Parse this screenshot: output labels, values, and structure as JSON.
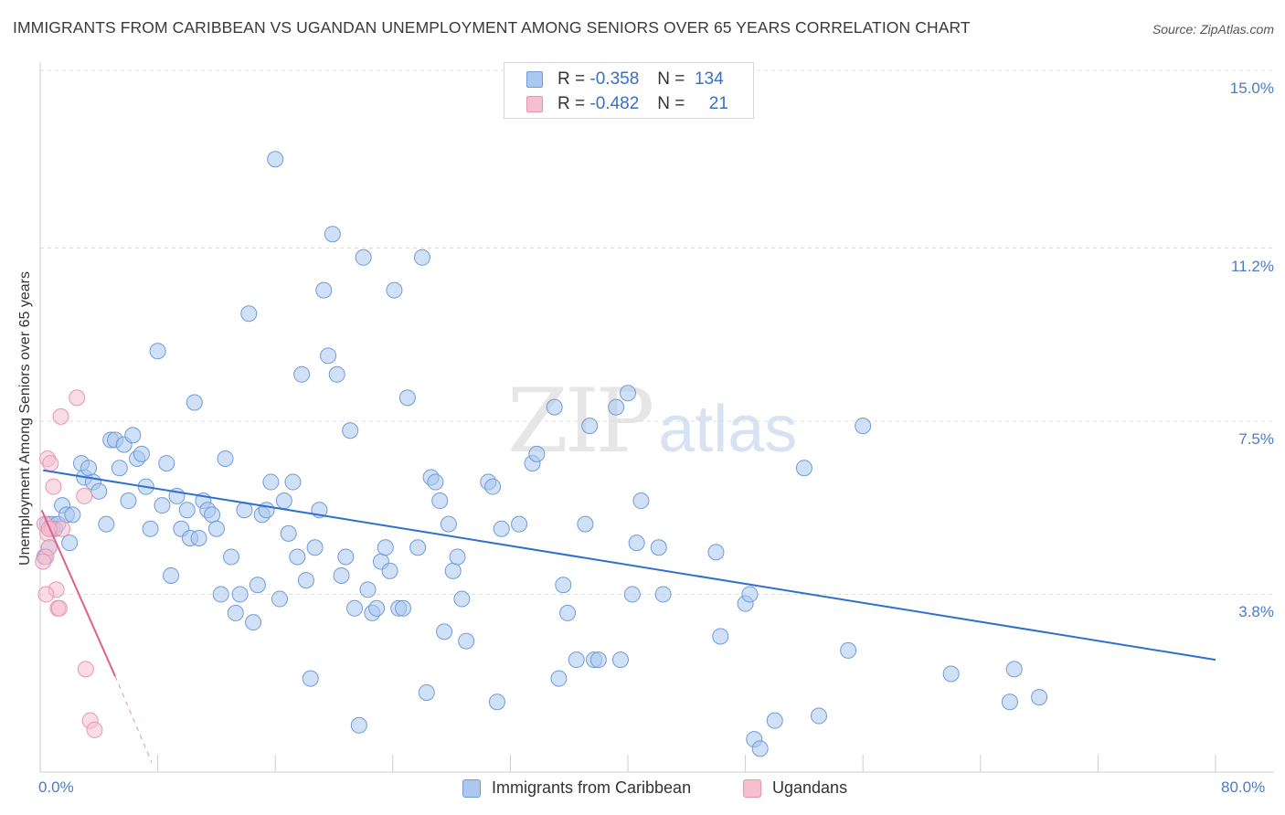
{
  "header": {
    "title": "IMMIGRANTS FROM CARIBBEAN VS UGANDAN UNEMPLOYMENT AMONG SENIORS OVER 65 YEARS CORRELATION CHART",
    "source": "Source: ZipAtlas.com"
  },
  "watermark": {
    "zip": "ZIP",
    "atlas": "atlas"
  },
  "legend_top": {
    "rows": [
      {
        "r_label": "R =",
        "r_value": "-0.358",
        "n_label": "N =",
        "n_value": "134"
      },
      {
        "r_label": "R =",
        "r_value": "-0.482",
        "n_label": "N =",
        "n_value": "21"
      }
    ]
  },
  "legend_bottom": {
    "items": [
      {
        "label": "Immigrants from Caribbean"
      },
      {
        "label": "Ugandans"
      }
    ]
  },
  "colors": {
    "blue_fill": "#aac8f0",
    "blue_stroke": "#6f9bd8",
    "blue_line": "#2f6fd0",
    "pink_fill": "#f6bfd0",
    "pink_stroke": "#e895b0",
    "pink_line": "#e0608e",
    "grid": "#dddddd",
    "axis_text": "#4a7cc7"
  },
  "chart_data": {
    "type": "scatter",
    "title": "IMMIGRANTS FROM CARIBBEAN VS UGANDAN UNEMPLOYMENT AMONG SENIORS OVER 65 YEARS CORRELATION CHART",
    "xlabel": "",
    "ylabel": "Unemployment Among Seniors over 65 years",
    "xlim": [
      0,
      80
    ],
    "ylim": [
      0,
      15.5
    ],
    "x_tick_labels": [
      "0.0%",
      "80.0%"
    ],
    "y_ticks": [
      3.8,
      7.5,
      11.2,
      15.0
    ],
    "y_tick_labels": [
      "3.8%",
      "7.5%",
      "11.2%",
      "15.0%"
    ],
    "grid": true,
    "legend_position": "top-center",
    "series": [
      {
        "name": "Immigrants from Caribbean",
        "r": -0.358,
        "n": 134,
        "trend": {
          "x": [
            0.2,
            80.0
          ],
          "y": [
            6.45,
            2.4
          ]
        },
        "points": [
          [
            0.5,
            5.3
          ],
          [
            0.8,
            5.3
          ],
          [
            1.0,
            5.2
          ],
          [
            1.2,
            5.3
          ],
          [
            1.5,
            5.7
          ],
          [
            1.8,
            5.5
          ],
          [
            2.0,
            4.9
          ],
          [
            2.2,
            5.5
          ],
          [
            2.8,
            6.6
          ],
          [
            3.0,
            6.3
          ],
          [
            3.3,
            6.5
          ],
          [
            3.6,
            6.2
          ],
          [
            4.0,
            6.0
          ],
          [
            4.5,
            5.3
          ],
          [
            4.8,
            7.1
          ],
          [
            5.1,
            7.1
          ],
          [
            5.4,
            6.5
          ],
          [
            5.7,
            7.0
          ],
          [
            6.0,
            5.8
          ],
          [
            6.3,
            7.2
          ],
          [
            6.6,
            6.7
          ],
          [
            6.9,
            6.8
          ],
          [
            7.2,
            6.1
          ],
          [
            7.5,
            5.2
          ],
          [
            8.0,
            9.0
          ],
          [
            8.3,
            5.7
          ],
          [
            8.6,
            6.6
          ],
          [
            8.9,
            4.2
          ],
          [
            9.3,
            5.9
          ],
          [
            9.6,
            5.2
          ],
          [
            10.0,
            5.6
          ],
          [
            10.2,
            5.0
          ],
          [
            10.5,
            7.9
          ],
          [
            10.8,
            5.0
          ],
          [
            11.1,
            5.8
          ],
          [
            11.4,
            5.6
          ],
          [
            11.7,
            5.5
          ],
          [
            12.0,
            5.2
          ],
          [
            12.3,
            3.8
          ],
          [
            12.6,
            6.7
          ],
          [
            13.0,
            4.6
          ],
          [
            13.3,
            3.4
          ],
          [
            13.6,
            3.8
          ],
          [
            13.9,
            5.6
          ],
          [
            14.2,
            9.8
          ],
          [
            14.5,
            3.2
          ],
          [
            14.8,
            4.0
          ],
          [
            15.1,
            5.5
          ],
          [
            15.4,
            5.6
          ],
          [
            15.7,
            6.2
          ],
          [
            16.0,
            13.1
          ],
          [
            16.3,
            3.7
          ],
          [
            16.6,
            5.8
          ],
          [
            16.9,
            5.1
          ],
          [
            17.2,
            6.2
          ],
          [
            17.5,
            4.6
          ],
          [
            17.8,
            8.5
          ],
          [
            18.1,
            4.1
          ],
          [
            18.4,
            2.0
          ],
          [
            18.7,
            4.8
          ],
          [
            19.0,
            5.6
          ],
          [
            19.3,
            10.3
          ],
          [
            19.6,
            8.9
          ],
          [
            19.9,
            11.5
          ],
          [
            20.2,
            8.5
          ],
          [
            20.5,
            4.2
          ],
          [
            20.8,
            4.6
          ],
          [
            21.1,
            7.3
          ],
          [
            21.4,
            3.5
          ],
          [
            21.7,
            1.0
          ],
          [
            22.0,
            11.0
          ],
          [
            22.3,
            3.9
          ],
          [
            22.6,
            3.4
          ],
          [
            22.9,
            3.5
          ],
          [
            23.2,
            4.5
          ],
          [
            23.5,
            4.8
          ],
          [
            23.8,
            4.3
          ],
          [
            24.1,
            10.3
          ],
          [
            24.4,
            3.5
          ],
          [
            24.7,
            3.5
          ],
          [
            25.0,
            8.0
          ],
          [
            25.7,
            4.8
          ],
          [
            26.0,
            11.0
          ],
          [
            26.3,
            1.7
          ],
          [
            26.6,
            6.3
          ],
          [
            26.9,
            6.2
          ],
          [
            27.2,
            5.8
          ],
          [
            27.5,
            3.0
          ],
          [
            27.8,
            5.3
          ],
          [
            28.1,
            4.3
          ],
          [
            28.4,
            4.6
          ],
          [
            28.7,
            3.7
          ],
          [
            29.0,
            2.8
          ],
          [
            30.5,
            6.2
          ],
          [
            30.8,
            6.1
          ],
          [
            31.1,
            1.5
          ],
          [
            31.4,
            5.2
          ],
          [
            32.6,
            5.3
          ],
          [
            33.5,
            6.6
          ],
          [
            33.8,
            6.8
          ],
          [
            35.0,
            7.8
          ],
          [
            35.3,
            2.0
          ],
          [
            35.6,
            4.0
          ],
          [
            35.9,
            3.4
          ],
          [
            36.5,
            2.4
          ],
          [
            37.1,
            5.3
          ],
          [
            37.4,
            7.4
          ],
          [
            37.7,
            2.4
          ],
          [
            38.0,
            2.4
          ],
          [
            39.2,
            7.8
          ],
          [
            39.5,
            2.4
          ],
          [
            40.0,
            8.1
          ],
          [
            40.3,
            3.8
          ],
          [
            40.6,
            4.9
          ],
          [
            40.9,
            5.8
          ],
          [
            42.1,
            4.8
          ],
          [
            42.4,
            3.8
          ],
          [
            46.0,
            4.7
          ],
          [
            46.3,
            2.9
          ],
          [
            48.0,
            3.6
          ],
          [
            48.3,
            3.8
          ],
          [
            48.6,
            0.7
          ],
          [
            49.0,
            0.5
          ],
          [
            50.0,
            1.1
          ],
          [
            52.0,
            6.5
          ],
          [
            53.0,
            1.2
          ],
          [
            55.0,
            2.6
          ],
          [
            56.0,
            7.4
          ],
          [
            62.0,
            2.1
          ],
          [
            66.0,
            1.5
          ],
          [
            66.3,
            2.2
          ],
          [
            68.0,
            1.6
          ],
          [
            0.3,
            4.6
          ],
          [
            0.6,
            4.8
          ]
        ]
      },
      {
        "name": "Ugandans",
        "r": -0.482,
        "n": 21,
        "trend": {
          "x": [
            0.1,
            5.1
          ],
          "y": [
            5.6,
            2.05
          ]
        },
        "trend_dashed_extension": {
          "x": [
            5.1,
            7.6
          ],
          "y": [
            2.05,
            0.2
          ]
        },
        "points": [
          [
            0.3,
            5.3
          ],
          [
            0.5,
            5.1
          ],
          [
            0.6,
            4.8
          ],
          [
            0.4,
            4.6
          ],
          [
            0.5,
            6.7
          ],
          [
            0.7,
            6.6
          ],
          [
            0.8,
            5.2
          ],
          [
            0.9,
            6.1
          ],
          [
            1.1,
            3.9
          ],
          [
            1.2,
            3.5
          ],
          [
            1.3,
            3.5
          ],
          [
            1.4,
            7.6
          ],
          [
            1.5,
            5.2
          ],
          [
            2.5,
            8.0
          ],
          [
            3.0,
            5.9
          ],
          [
            3.1,
            2.2
          ],
          [
            3.4,
            1.1
          ],
          [
            3.7,
            0.9
          ],
          [
            0.2,
            4.5
          ],
          [
            0.4,
            3.8
          ],
          [
            0.6,
            5.2
          ]
        ]
      }
    ]
  }
}
